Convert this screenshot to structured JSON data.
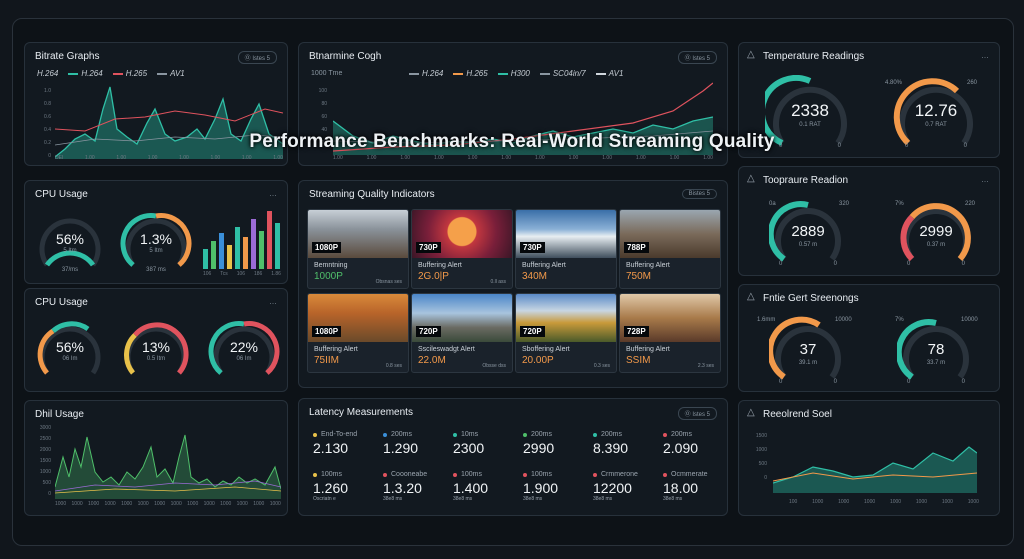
{
  "overlay_title": "Performance Benchmarks: Real-World Streaming Quality",
  "colors": {
    "teal": "#2fbfa6",
    "orange": "#f2994a",
    "red": "#e0535e",
    "yellow": "#e8c14a",
    "blue": "#3a8fd9",
    "purple": "#9b6bd6",
    "green": "#4fbf6a"
  },
  "bitrate": {
    "title": "Bitrate Graphs",
    "pill": "Ⓞ Istes 5",
    "legend": [
      "H.264",
      "H.264",
      "H.265",
      "AV1"
    ],
    "yticks": [
      "1.0",
      "0.8",
      "0.6",
      "0.4",
      "0.2",
      "0"
    ],
    "xticks": [
      "DEI",
      "1.00",
      "1.00",
      "1.00",
      "1.00",
      "1.00",
      "1.00",
      "1.00"
    ]
  },
  "benchmark": {
    "title": "Btnarmine Cogh",
    "pill": "Ⓞ Istes 5",
    "legend": [
      "H.264",
      "H.265",
      "H300",
      "SC04in/7",
      "AV1"
    ],
    "ylabel": "1000 Tme",
    "yticks": [
      "100",
      "80",
      "60",
      "40",
      "20"
    ],
    "xticks": [
      "1.00",
      "1.00",
      "1.00",
      "1.00",
      "1.00",
      "1.00",
      "1.00",
      "1.00",
      "1.00",
      "1.00",
      "1.00",
      "1.00"
    ]
  },
  "temperature": {
    "title": "Temperature Readings",
    "g1": {
      "value": "2338",
      "sub": "0.1 RAT",
      "min": "0",
      "max": "0"
    },
    "g2": {
      "value": "12.76",
      "sub": "0.7 RAT",
      "label_l": "4.80%",
      "label_r": "260",
      "min": "0",
      "max": "0"
    }
  },
  "cpu1": {
    "title": "CPU Usage",
    "menu": "…",
    "g1": {
      "value": "56%",
      "sub": "5 Itm",
      "foot": "37/ms"
    },
    "g2": {
      "value": "1.3%",
      "sub": "5 Itm",
      "foot": "387 ms"
    },
    "bars_x": [
      "106",
      "Tcs",
      "106",
      "186",
      "1.86"
    ]
  },
  "cpu2": {
    "title": "CPU Usage",
    "menu": "…",
    "g1": {
      "value": "56%",
      "sub": "06 Im"
    },
    "g2": {
      "value": "13%",
      "sub": "0.5 Itm"
    },
    "g3": {
      "value": "22%",
      "sub": "06 Im"
    }
  },
  "quality": {
    "title": "Streaming Quality Indicators",
    "pill": "Bistes 5",
    "thumbs": [
      {
        "res": "1080P",
        "label": "Bemntning",
        "big": "1000P",
        "foot": "Obsnas ses"
      },
      {
        "res": "730P",
        "label": "Buffering Alert",
        "big": "2G.0|P",
        "foot": "0.ll ass"
      },
      {
        "res": "730P",
        "label": "Buffering Alert",
        "big": "340M",
        "foot": ""
      },
      {
        "res": "788P",
        "label": "Buffering Alert",
        "big": "750M",
        "foot": ""
      },
      {
        "res": "1080P",
        "label": "Buffering Alert",
        "big": "75IIM",
        "foot": "0.8 ses"
      },
      {
        "res": "720P",
        "label": "Sscileswadgt Alert",
        "big": "22.0M",
        "foot": "Obsse dss"
      },
      {
        "res": "720P",
        "label": "Sboffering Alert",
        "big": "20.00P",
        "foot": "0.3 ses"
      },
      {
        "res": "728P",
        "label": "Buffering Alert",
        "big": "SSIM",
        "foot": "2.3 ses"
      }
    ]
  },
  "trad": {
    "title": "Toopraure Readion",
    "g1": {
      "value": "2889",
      "sub": "0.57 m",
      "label_l": "0a",
      "label_r": "320",
      "min": "0",
      "max": "0"
    },
    "g2": {
      "value": "2999",
      "sub": "0.37 m",
      "label_l": "7%",
      "label_r": "220",
      "min": "0",
      "max": "0"
    }
  },
  "frame_scores": {
    "title": "Fntie Gert Sreenongs",
    "g1": {
      "value": "37",
      "sub": "39.1 m",
      "label_l": "1.6mm",
      "label_r": "10000",
      "min": "0",
      "max": "0"
    },
    "g2": {
      "value": "78",
      "sub": "33.7 m",
      "label_l": "7%",
      "label_r": "10000",
      "min": "0",
      "max": "0"
    }
  },
  "disk": {
    "title": "Dhil Usage",
    "yticks": [
      "3000",
      "2500",
      "2000",
      "1500",
      "1000",
      "500",
      "0"
    ],
    "xticks": [
      "1000",
      "1000",
      "1000",
      "1000",
      "1000",
      "1000",
      "1000",
      "1000",
      "1000",
      "1000",
      "1000",
      "1000",
      "1000",
      "1000"
    ]
  },
  "latency": {
    "title": "Latency Measurements",
    "pill": "Ⓞ Istes 5",
    "items": [
      {
        "h": "End-To-end",
        "v": "2.130"
      },
      {
        "h": "200ms",
        "v": "1.290"
      },
      {
        "h": "10ms",
        "v": "2300"
      },
      {
        "h": "200ms",
        "v": "2990"
      },
      {
        "h": "200ms",
        "v": "8.390"
      },
      {
        "h": "200ms",
        "v": "2.090"
      },
      {
        "h": "100ms",
        "v": "1.260",
        "s": "Oscriatn e"
      },
      {
        "h": "Coooneabe",
        "v": "1.3.20",
        "s": "38e8 ms"
      },
      {
        "h": "100ms",
        "v": "1.400",
        "s": "38e8 ms"
      },
      {
        "h": "100ms",
        "v": "1.900",
        "s": "38e8 ms"
      },
      {
        "h": "Crmmerone",
        "v": "12200",
        "s": "38e8 ms"
      },
      {
        "h": "Ocmmerate",
        "v": "18.00",
        "s": "38e8 ms"
      }
    ]
  },
  "resolution": {
    "title": "Reeolrend Soel",
    "yticks": [
      "1500",
      "1000",
      "500",
      "0"
    ],
    "xticks": [
      "100",
      "1000",
      "1000",
      "1000",
      "1000",
      "1000",
      "1000",
      "1000"
    ]
  }
}
